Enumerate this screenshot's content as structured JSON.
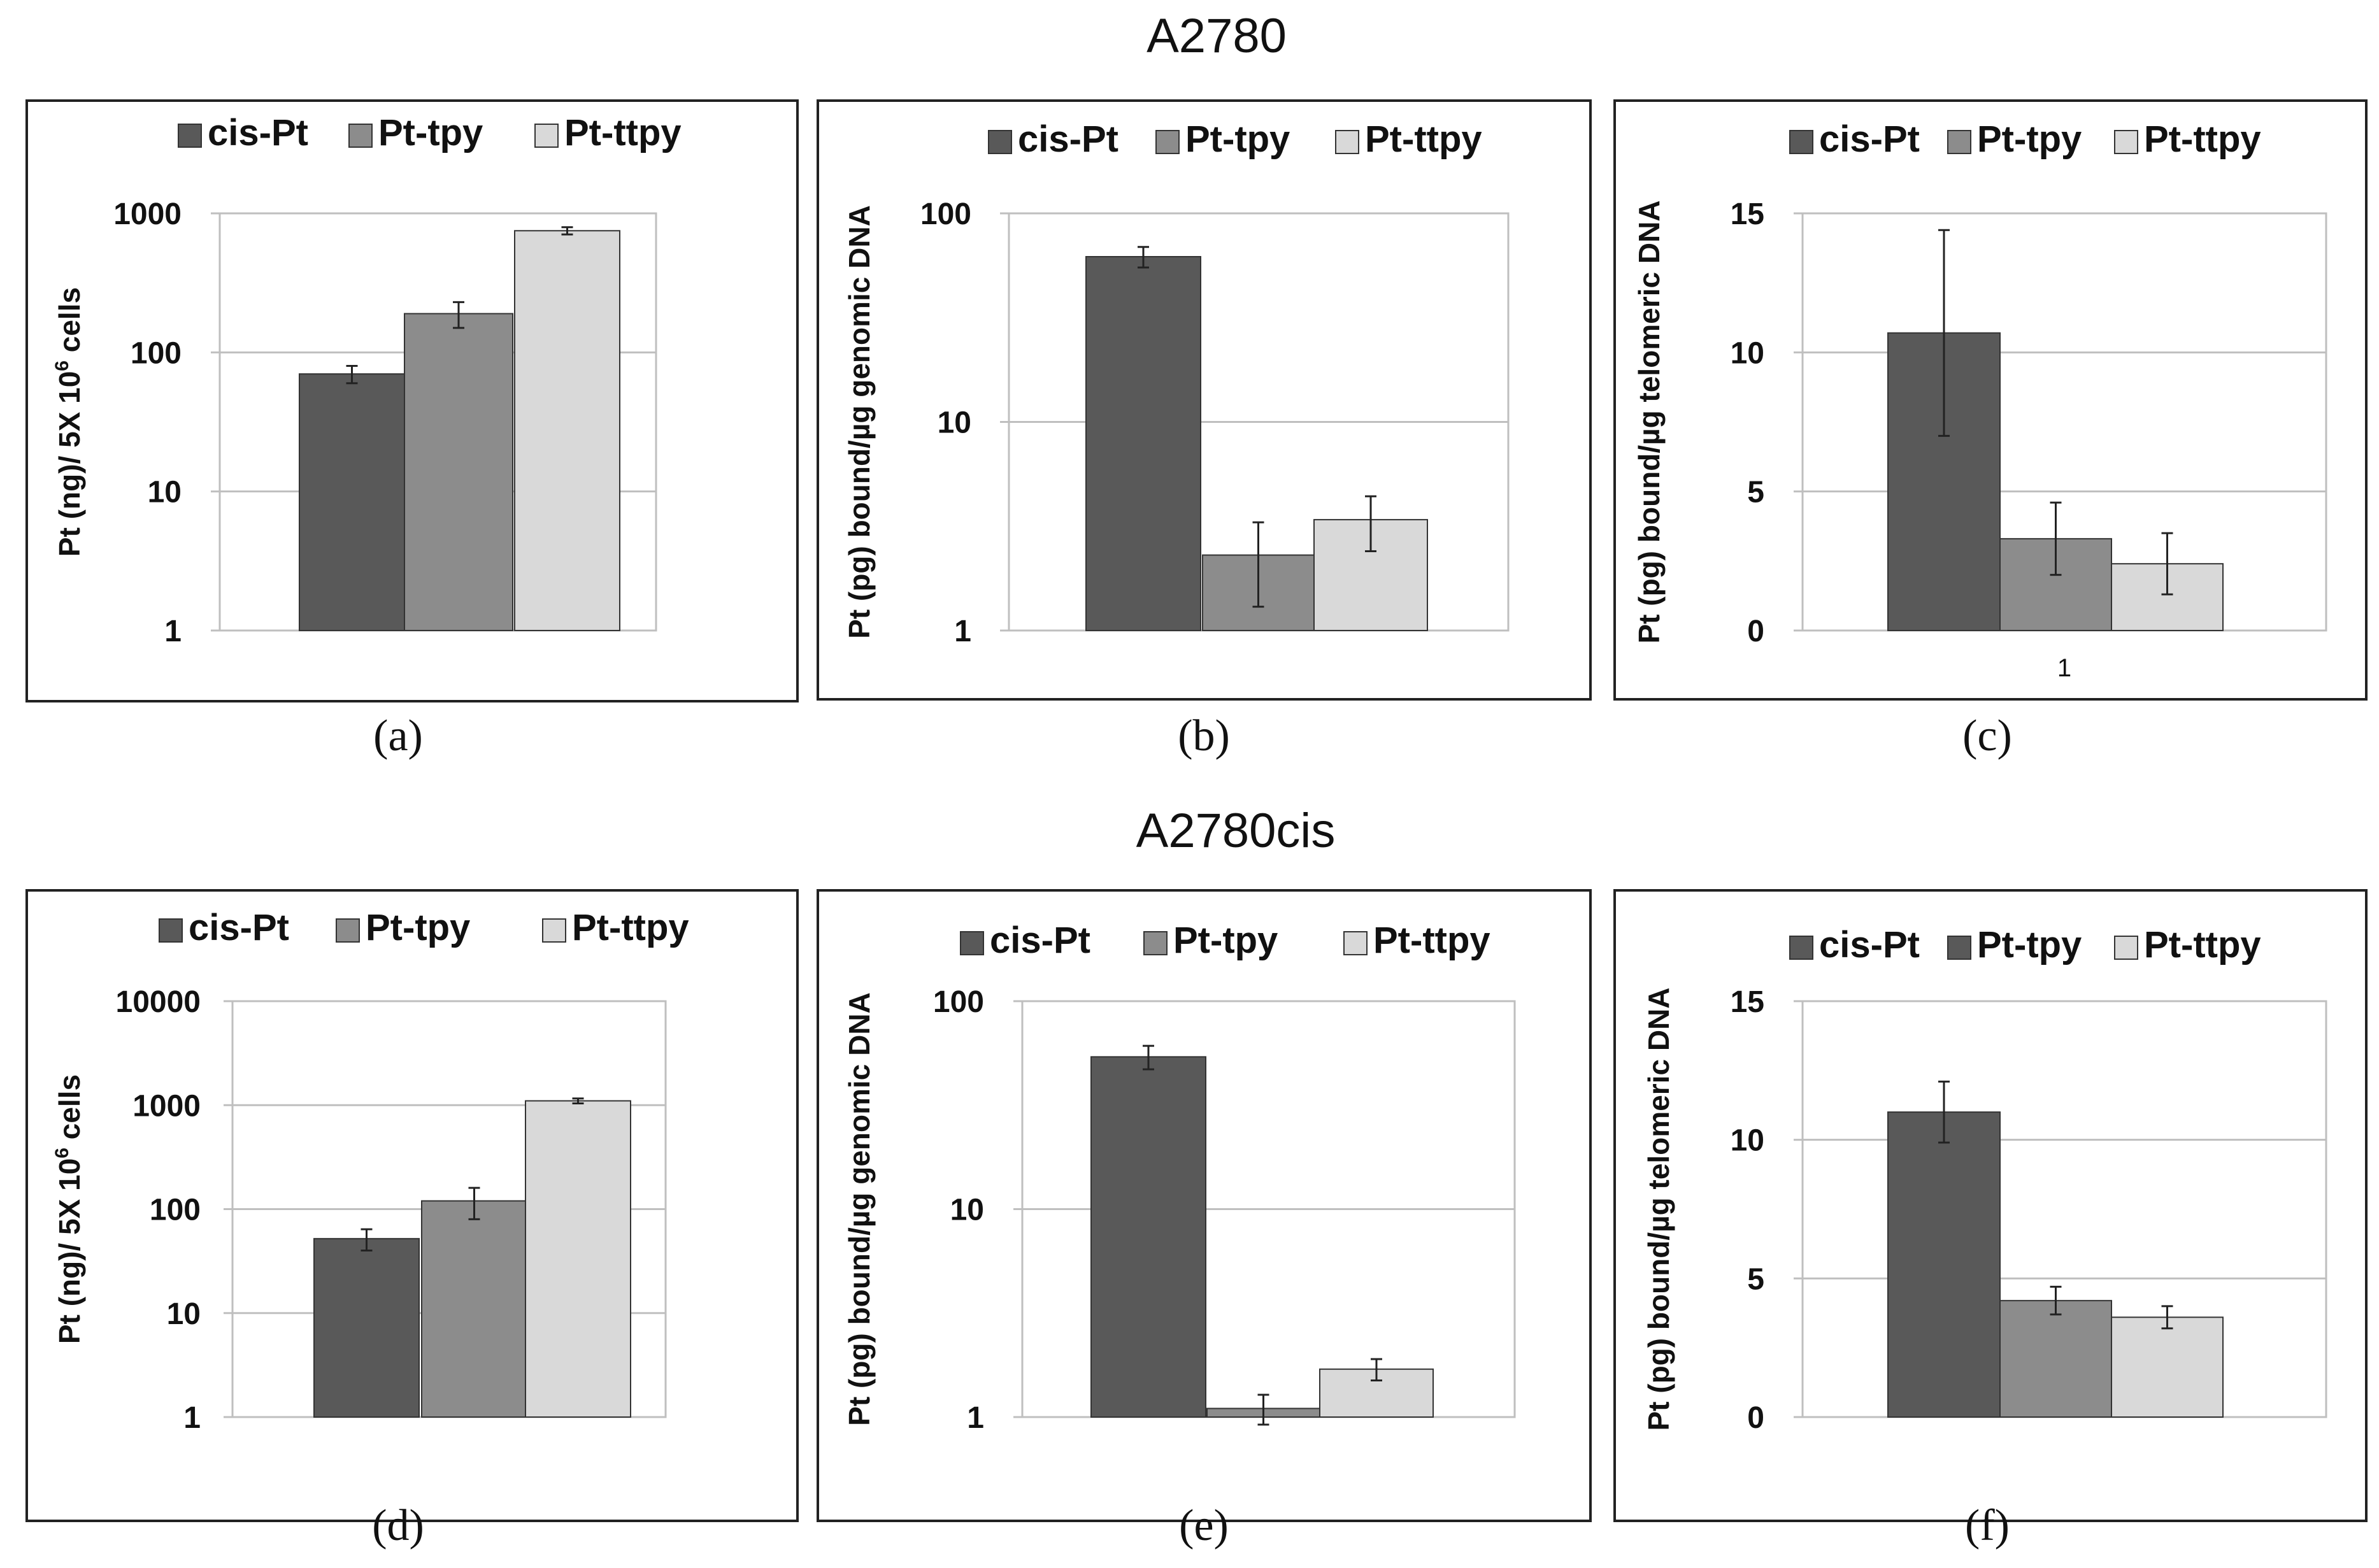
{
  "figure": {
    "group_titles": [
      "A2780",
      "A2780cis"
    ]
  },
  "chart_data": [
    {
      "type": "bar",
      "panel_label": "(a)",
      "group": "A2780",
      "scale": "log",
      "ylabel": "Pt (ng)/ 5X 10",
      "ylabel_sup": "6",
      "ylabel_tail": " cells",
      "ylim": [
        1,
        1000
      ],
      "yticks": [
        "1",
        "10",
        "100",
        "1000"
      ],
      "grid": true,
      "categories": [
        ""
      ],
      "legend_position": "top",
      "series": [
        {
          "name": "cis-Pt",
          "color": "#595959",
          "values": [
            70
          ],
          "err": [
            10
          ]
        },
        {
          "name": "Pt-tpy",
          "color": "#8c8c8c",
          "values": [
            190
          ],
          "err": [
            40
          ]
        },
        {
          "name": "Pt-ttpy",
          "color": "#d9d9d9",
          "values": [
            750
          ],
          "err": [
            45
          ]
        }
      ]
    },
    {
      "type": "bar",
      "panel_label": "(b)",
      "group": "A2780",
      "scale": "log",
      "ylabel": "Pt (pg) bound/µg genomic DNA",
      "ylim": [
        1,
        100
      ],
      "yticks": [
        "1",
        "10",
        "100"
      ],
      "grid": true,
      "categories": [
        ""
      ],
      "legend_position": "top",
      "series": [
        {
          "name": "cis-Pt",
          "color": "#595959",
          "values": [
            62
          ],
          "err": [
            7
          ]
        },
        {
          "name": "Pt-tpy",
          "color": "#8c8c8c",
          "values": [
            2.3
          ],
          "err": [
            1
          ]
        },
        {
          "name": "Pt-ttpy",
          "color": "#d9d9d9",
          "values": [
            3.4
          ],
          "err": [
            1
          ]
        }
      ]
    },
    {
      "type": "bar",
      "panel_label": "(c)",
      "group": "A2780",
      "scale": "linear",
      "ylabel": "Pt (pg) bound/µg telomeric DNA",
      "ylim": [
        0,
        15
      ],
      "yticks": [
        "0",
        "5",
        "10",
        "15"
      ],
      "grid": true,
      "categories": [
        "1"
      ],
      "legend_position": "top",
      "series": [
        {
          "name": "cis-Pt",
          "color": "#595959",
          "values": [
            10.7
          ],
          "err": [
            3.7
          ]
        },
        {
          "name": "Pt-tpy",
          "color": "#8c8c8c",
          "values": [
            3.3
          ],
          "err": [
            1.3
          ]
        },
        {
          "name": "Pt-ttpy",
          "color": "#d9d9d9",
          "values": [
            2.4
          ],
          "err": [
            1.1
          ]
        }
      ]
    },
    {
      "type": "bar",
      "panel_label": "(d)",
      "group": "A2780cis",
      "scale": "log",
      "ylabel": "Pt (ng)/ 5X 10",
      "ylabel_sup": "6",
      "ylabel_tail": " cells",
      "ylim": [
        1,
        10000
      ],
      "yticks": [
        "1",
        "10",
        "100",
        "1000",
        "10000"
      ],
      "grid": true,
      "categories": [
        ""
      ],
      "legend_position": "top",
      "series": [
        {
          "name": "cis-Pt",
          "color": "#595959",
          "values": [
            52
          ],
          "err": [
            12
          ]
        },
        {
          "name": "Pt-tpy",
          "color": "#8c8c8c",
          "values": [
            120
          ],
          "err": [
            40
          ]
        },
        {
          "name": "Pt-ttpy",
          "color": "#d9d9d9",
          "values": [
            1100
          ],
          "err": [
            60
          ]
        }
      ]
    },
    {
      "type": "bar",
      "panel_label": "(e)",
      "group": "A2780cis",
      "scale": "log",
      "ylabel": "Pt (pg) bound/µg genomic DNA",
      "ylim": [
        1,
        100
      ],
      "yticks": [
        "1",
        "10",
        "100"
      ],
      "grid": true,
      "categories": [
        ""
      ],
      "legend_position": "top",
      "series": [
        {
          "name": "cis-Pt",
          "color": "#595959",
          "values": [
            54
          ],
          "err": [
            7
          ]
        },
        {
          "name": "Pt-tpy",
          "color": "#8c8c8c",
          "values": [
            1.1
          ],
          "err": [
            0.18
          ]
        },
        {
          "name": "Pt-ttpy",
          "color": "#d9d9d9",
          "values": [
            1.7
          ],
          "err": [
            0.2
          ]
        }
      ]
    },
    {
      "type": "bar",
      "panel_label": "(f)",
      "group": "A2780cis",
      "scale": "linear",
      "ylabel": "Pt (pg) bound/µg telomeric DNA",
      "ylim": [
        0,
        15
      ],
      "yticks": [
        "0",
        "5",
        "10",
        "15"
      ],
      "grid": true,
      "categories": [
        ""
      ],
      "legend_position": "top",
      "series": [
        {
          "name": "cis-Pt",
          "color": "#595959",
          "values": [
            11
          ],
          "err": [
            1.1
          ]
        },
        {
          "name": "Pt-tpy",
          "color": "#8c8c8c",
          "legend_color": "#595959",
          "values": [
            4.2
          ],
          "err": [
            0.5
          ]
        },
        {
          "name": "Pt-ttpy",
          "color": "#d9d9d9",
          "values": [
            3.6
          ],
          "err": [
            0.4
          ]
        }
      ]
    }
  ]
}
